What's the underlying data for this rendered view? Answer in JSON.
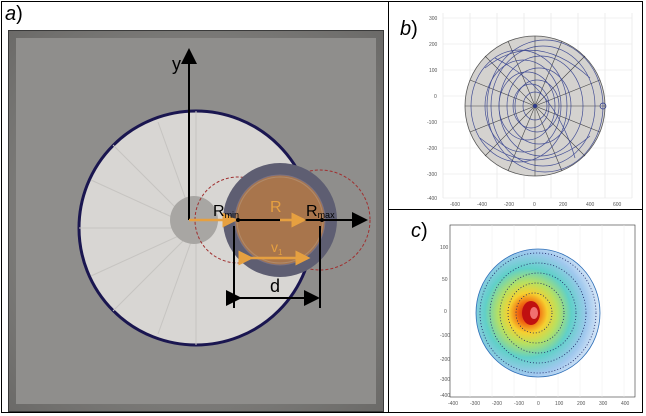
{
  "panel_a": {
    "label": "a",
    "paren": ")",
    "y_axis_label": "y",
    "r_min_main": "R",
    "r_min_sub": "min",
    "r_label": "R",
    "r_max_main": "R",
    "r_max_sub": "max",
    "v_main": "v",
    "v_sub": "1",
    "d_label": "d"
  },
  "panel_b": {
    "label": "b",
    "paren": ")",
    "x_ticks": [
      "-600",
      "-400",
      "-200",
      "0",
      "200",
      "400",
      "600"
    ],
    "y_ticks": [
      "300",
      "200",
      "100",
      "0",
      "-100",
      "-200",
      "-300",
      "-400"
    ]
  },
  "panel_c": {
    "label": "c",
    "paren": ")",
    "x_ticks": [
      "-400",
      "-300",
      "-200",
      "-100",
      "0",
      "100",
      "200",
      "300",
      "400"
    ],
    "y_ticks": [
      "100",
      "50",
      "0",
      "-100",
      "-200",
      "-300",
      "-400"
    ]
  },
  "colors": {
    "panel_a_bg": "#8f8e8c",
    "panel_a_disk": "#d8d6d3",
    "navy_circle": "#1a1650",
    "orange": "#e6a040",
    "dashed_red": "#a03030",
    "trajectory_blue": "#2d3a8c"
  }
}
